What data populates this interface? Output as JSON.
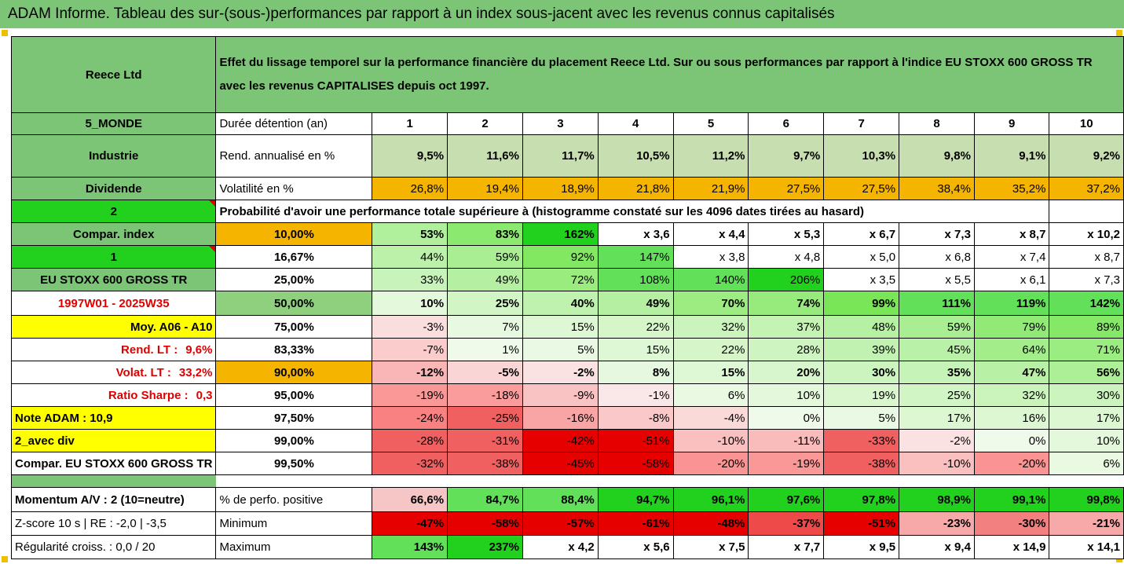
{
  "title": "ADAM Informe. Tableau des sur-(sous-)performances par rapport à un index sous-jacent avec les revenus connus capitalisés",
  "header": {
    "company": "Reece Ltd",
    "description": "Effet du lissage temporel sur la performance financière du placement Reece Ltd. Sur ou sous performances par rapport à l'indice EU STOXX 600 GROSS TR avec les revenus CAPITALISES depuis oct 1997."
  },
  "rows": {
    "durations": {
      "left": "5_MONDE",
      "label": "Durée détention (an)",
      "values": [
        "1",
        "2",
        "3",
        "4",
        "5",
        "6",
        "7",
        "8",
        "9",
        "10"
      ]
    },
    "rend": {
      "left": "Industrie",
      "label": "Rend. annualisé en %",
      "values": [
        "9,5%",
        "11,6%",
        "11,7%",
        "10,5%",
        "11,2%",
        "9,7%",
        "10,3%",
        "9,8%",
        "9,1%",
        "9,2%"
      ]
    },
    "vol": {
      "left": "Dividende",
      "label": "Volatilité en %",
      "values": [
        "26,8%",
        "19,4%",
        "18,9%",
        "21,8%",
        "21,9%",
        "27,5%",
        "27,5%",
        "38,4%",
        "35,2%",
        "37,2%"
      ]
    },
    "prob_header": {
      "left": "2",
      "label": "Probabilité d'avoir une performance totale supérieure à (histogramme constaté sur les 4096 dates tirées au hasard)"
    }
  },
  "prob_rows": [
    {
      "left": "Compar. index",
      "pct": "10,00%",
      "values": [
        "53%",
        "83%",
        "162%",
        "x 3,6",
        "x 4,4",
        "x 5,3",
        "x 6,7",
        "x 7,3",
        "x 8,7",
        "x 10,2"
      ]
    },
    {
      "left": "1",
      "pct": "16,67%",
      "values": [
        "44%",
        "59%",
        "92%",
        "147%",
        "x 3,8",
        "x 4,8",
        "x 5,0",
        "x 6,8",
        "x 7,4",
        "x 8,7"
      ]
    },
    {
      "left": "EU STOXX 600 GROSS TR",
      "pct": "25,00%",
      "values": [
        "33%",
        "49%",
        "72%",
        "108%",
        "140%",
        "206%",
        "x 3,5",
        "x 5,5",
        "x 6,1",
        "x 7,3"
      ]
    },
    {
      "left": "1997W01 - 2025W35",
      "pct": "50,00%",
      "values": [
        "10%",
        "25%",
        "40%",
        "49%",
        "70%",
        "74%",
        "99%",
        "111%",
        "119%",
        "142%"
      ]
    },
    {
      "left": "Moy. A06 - A10",
      "pct": "75,00%",
      "values": [
        "-3%",
        "7%",
        "15%",
        "22%",
        "32%",
        "37%",
        "48%",
        "59%",
        "79%",
        "89%"
      ]
    },
    {
      "left": "Rend. LT :",
      "left_val": "9,6%",
      "pct": "83,33%",
      "values": [
        "-7%",
        "1%",
        "5%",
        "15%",
        "22%",
        "28%",
        "39%",
        "45%",
        "64%",
        "71%"
      ]
    },
    {
      "left": "Volat. LT :",
      "left_val": "33,2%",
      "pct": "90,00%",
      "values": [
        "-12%",
        "-5%",
        "-2%",
        "8%",
        "15%",
        "20%",
        "30%",
        "35%",
        "47%",
        "56%"
      ]
    },
    {
      "left": "Ratio Sharpe :",
      "left_val": "0,3",
      "pct": "95,00%",
      "values": [
        "-19%",
        "-18%",
        "-9%",
        "-1%",
        "6%",
        "10%",
        "19%",
        "25%",
        "32%",
        "30%"
      ]
    },
    {
      "left": "Note ADAM : 10,9",
      "pct": "97,50%",
      "values": [
        "-24%",
        "-25%",
        "-16%",
        "-8%",
        "-4%",
        "0%",
        "5%",
        "17%",
        "16%",
        "17%"
      ]
    },
    {
      "left": "2_avec div",
      "pct": "99,00%",
      "values": [
        "-28%",
        "-31%",
        "-42%",
        "-51%",
        "-10%",
        "-11%",
        "-33%",
        "-2%",
        "0%",
        "10%"
      ]
    },
    {
      "left": "Compar. EU STOXX 600 GROSS TR",
      "pct": "99,50%",
      "values": [
        "-32%",
        "-38%",
        "-45%",
        "-58%",
        "-20%",
        "-19%",
        "-38%",
        "-10%",
        "-20%",
        "6%"
      ]
    }
  ],
  "bottom_rows": [
    {
      "left": "Momentum A/V : 2 (10=neutre)",
      "label": "% de perfo. positive",
      "values": [
        "66,6%",
        "84,7%",
        "88,4%",
        "94,7%",
        "96,1%",
        "97,6%",
        "97,8%",
        "98,9%",
        "99,1%",
        "99,8%"
      ]
    },
    {
      "left": "Z-score 10 s  |  RE : -2,0  |  -3,5",
      "label": "Minimum",
      "values": [
        "-47%",
        "-58%",
        "-57%",
        "-61%",
        "-48%",
        "-37%",
        "-51%",
        "-23%",
        "-30%",
        "-21%"
      ]
    },
    {
      "left": "Régularité croiss. : 0,0 / 20",
      "label": "Maximum",
      "values": [
        "143%",
        "237%",
        "x 4,2",
        "x 5,6",
        "x 7,5",
        "x 7,7",
        "x 9,5",
        "x 9,4",
        "x 14,9",
        "x 14,1"
      ]
    }
  ],
  "colors": {
    "header_green": "#7cc576",
    "yellow": "#ffff00",
    "orange": "#f5b400",
    "bright_green": "#22d11d",
    "red": "#e60000"
  }
}
